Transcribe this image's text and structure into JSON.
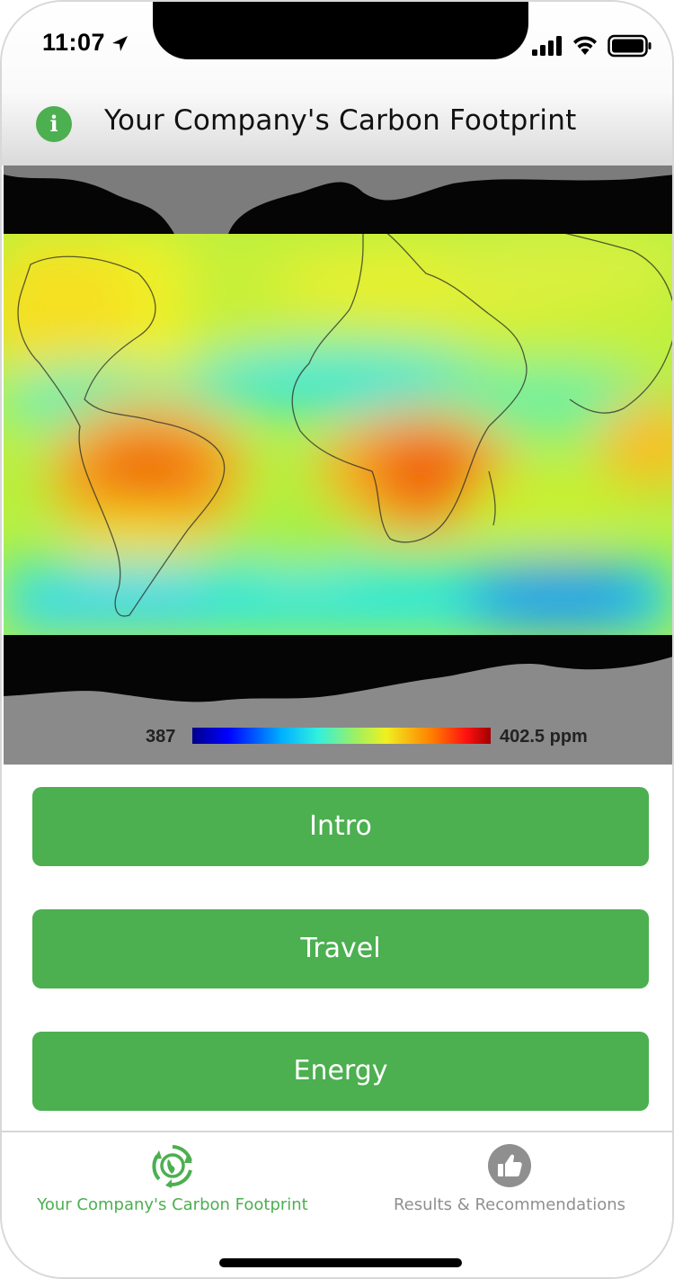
{
  "status_bar": {
    "time": "11:07",
    "icons": [
      "location-arrow-icon",
      "cellular-signal-icon",
      "wifi-icon",
      "battery-icon"
    ]
  },
  "header": {
    "info_icon": "i",
    "title": "Your Company's Carbon Footprint"
  },
  "map": {
    "legend_min": "387",
    "legend_max": "402.5 ppm"
  },
  "buttons": [
    {
      "label": "Intro"
    },
    {
      "label": "Travel"
    },
    {
      "label": "Energy"
    }
  ],
  "tab_bar": {
    "tabs": [
      {
        "label": "Your Company's Carbon Footprint",
        "icon": "recycle-globe-icon",
        "active": true
      },
      {
        "label": "Results & Recommendations",
        "icon": "thumbs-up-icon",
        "active": false
      }
    ]
  },
  "colors": {
    "accent": "#4caf50",
    "inactive": "#8f8f8f"
  }
}
